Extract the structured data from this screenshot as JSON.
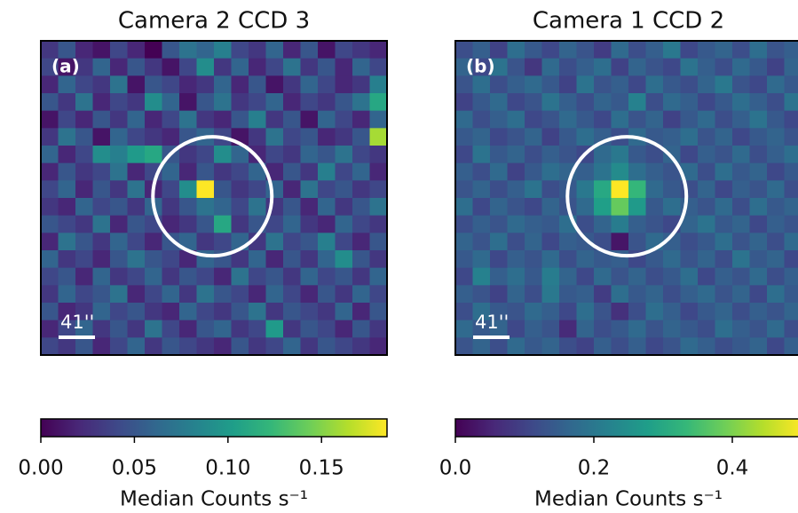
{
  "chart_data": [
    {
      "type": "heatmap",
      "title": "Camera 2 CCD 3",
      "label": "(a)",
      "scale_bar": "41''",
      "colormap": "viridis",
      "zlim": [
        0,
        0.185
      ],
      "colorbar_ticks": [
        {
          "value": 0,
          "label": "0.00"
        },
        0.05,
        {
          "value": 0.1,
          "label": "0.10"
        },
        0.15
      ],
      "colorbar_label": "Median Counts s⁻¹",
      "z": [
        [
          0.03,
          0.05,
          0.02,
          0.01,
          0.04,
          0.02,
          0.0,
          0.05,
          0.07,
          0.06,
          0.08,
          0.04,
          0.03,
          0.06,
          0.02,
          0.05,
          0.01,
          0.04,
          0.03,
          0.02
        ],
        [
          0.04,
          0.01,
          0.03,
          0.06,
          0.02,
          0.05,
          0.03,
          0.01,
          0.04,
          0.09,
          0.03,
          0.06,
          0.02,
          0.04,
          0.07,
          0.03,
          0.05,
          0.02,
          0.06,
          0.04
        ],
        [
          0.02,
          0.06,
          0.04,
          0.03,
          0.07,
          0.01,
          0.05,
          0.04,
          0.02,
          0.03,
          0.06,
          0.02,
          0.05,
          0.01,
          0.03,
          0.06,
          0.04,
          0.02,
          0.03,
          0.08
        ],
        [
          0.05,
          0.03,
          0.07,
          0.02,
          0.04,
          0.03,
          0.09,
          0.06,
          0.01,
          0.05,
          0.07,
          0.03,
          0.04,
          0.06,
          0.02,
          0.04,
          0.03,
          0.05,
          0.07,
          0.11
        ],
        [
          0.01,
          0.04,
          0.02,
          0.05,
          0.03,
          0.06,
          0.02,
          0.04,
          0.07,
          0.03,
          0.02,
          0.05,
          0.08,
          0.03,
          0.05,
          0.01,
          0.06,
          0.04,
          0.02,
          0.06
        ],
        [
          0.03,
          0.07,
          0.05,
          0.01,
          0.06,
          0.04,
          0.03,
          0.02,
          0.05,
          0.06,
          0.04,
          0.01,
          0.03,
          0.07,
          0.04,
          0.05,
          0.02,
          0.03,
          0.05,
          0.16
        ],
        [
          0.06,
          0.02,
          0.04,
          0.09,
          0.08,
          0.1,
          0.11,
          0.05,
          0.03,
          0.04,
          0.09,
          0.06,
          0.02,
          0.04,
          0.03,
          0.06,
          0.05,
          0.07,
          0.04,
          0.03
        ],
        [
          0.02,
          0.05,
          0.03,
          0.04,
          0.07,
          0.02,
          0.04,
          0.06,
          0.02,
          0.05,
          0.03,
          0.04,
          0.06,
          0.02,
          0.05,
          0.03,
          0.08,
          0.04,
          0.06,
          0.02
        ],
        [
          0.04,
          0.06,
          0.02,
          0.05,
          0.03,
          0.07,
          0.02,
          0.04,
          0.09,
          0.185,
          0.05,
          0.03,
          0.04,
          0.06,
          0.02,
          0.07,
          0.04,
          0.05,
          0.03,
          0.04
        ],
        [
          0.03,
          0.02,
          0.06,
          0.04,
          0.05,
          0.03,
          0.06,
          0.03,
          0.05,
          0.07,
          0.06,
          0.04,
          0.07,
          0.03,
          0.05,
          0.02,
          0.06,
          0.03,
          0.05,
          0.07
        ],
        [
          0.05,
          0.04,
          0.03,
          0.07,
          0.02,
          0.05,
          0.04,
          0.02,
          0.03,
          0.05,
          0.11,
          0.03,
          0.05,
          0.04,
          0.06,
          0.03,
          0.02,
          0.06,
          0.04,
          0.03
        ],
        [
          0.02,
          0.07,
          0.05,
          0.03,
          0.06,
          0.04,
          0.02,
          0.05,
          0.06,
          0.03,
          0.04,
          0.06,
          0.03,
          0.07,
          0.04,
          0.05,
          0.08,
          0.04,
          0.02,
          0.05
        ],
        [
          0.06,
          0.03,
          0.04,
          0.02,
          0.05,
          0.07,
          0.05,
          0.04,
          0.02,
          0.06,
          0.05,
          0.03,
          0.06,
          0.02,
          0.05,
          0.03,
          0.06,
          0.09,
          0.05,
          0.03
        ],
        [
          0.04,
          0.05,
          0.02,
          0.06,
          0.03,
          0.04,
          0.06,
          0.03,
          0.05,
          0.04,
          0.02,
          0.07,
          0.04,
          0.05,
          0.03,
          0.06,
          0.04,
          0.05,
          0.03,
          0.06
        ],
        [
          0.03,
          0.06,
          0.04,
          0.05,
          0.07,
          0.02,
          0.04,
          0.06,
          0.03,
          0.07,
          0.05,
          0.04,
          0.02,
          0.06,
          0.04,
          0.02,
          0.05,
          0.03,
          0.06,
          0.04
        ],
        [
          0.05,
          0.02,
          0.03,
          0.06,
          0.04,
          0.05,
          0.03,
          0.02,
          0.06,
          0.04,
          0.03,
          0.05,
          0.07,
          0.03,
          0.05,
          0.04,
          0.03,
          0.06,
          0.02,
          0.05
        ],
        [
          0.02,
          0.04,
          0.06,
          0.03,
          0.05,
          0.03,
          0.07,
          0.04,
          0.02,
          0.05,
          0.06,
          0.03,
          0.04,
          0.1,
          0.03,
          0.05,
          0.04,
          0.02,
          0.05,
          0.03
        ],
        [
          0.04,
          0.03,
          0.05,
          0.02,
          0.04,
          0.06,
          0.03,
          0.05,
          0.04,
          0.03,
          0.02,
          0.05,
          0.03,
          0.04,
          0.06,
          0.03,
          0.05,
          0.04,
          0.03,
          0.02
        ]
      ]
    },
    {
      "type": "heatmap",
      "title": "Camera 1 CCD 2",
      "label": "(b)",
      "scale_bar": "41''",
      "colormap": "viridis",
      "zlim": [
        0,
        0.5
      ],
      "colorbar_ticks": [
        {
          "value": 0,
          "label": "0.0"
        },
        0.2,
        0.4
      ],
      "colorbar_label": "Median Counts s⁻¹",
      "z": [
        [
          0.12,
          0.15,
          0.1,
          0.18,
          0.14,
          0.11,
          0.16,
          0.13,
          0.09,
          0.17,
          0.12,
          0.15,
          0.2,
          0.11,
          0.14,
          0.16,
          0.12,
          0.18,
          0.13,
          0.15
        ],
        [
          0.16,
          0.11,
          0.19,
          0.13,
          0.08,
          0.17,
          0.12,
          0.15,
          0.18,
          0.1,
          0.16,
          0.13,
          0.11,
          0.19,
          0.15,
          0.12,
          0.17,
          0.14,
          0.1,
          0.16
        ],
        [
          0.13,
          0.18,
          0.12,
          0.15,
          0.17,
          0.14,
          0.1,
          0.19,
          0.13,
          0.15,
          0.11,
          0.18,
          0.14,
          0.12,
          0.16,
          0.2,
          0.13,
          0.11,
          0.17,
          0.14
        ],
        [
          0.1,
          0.14,
          0.17,
          0.11,
          0.13,
          0.19,
          0.15,
          0.12,
          0.16,
          0.14,
          0.22,
          0.12,
          0.17,
          0.15,
          0.11,
          0.14,
          0.18,
          0.15,
          0.12,
          0.19
        ],
        [
          0.17,
          0.12,
          0.15,
          0.18,
          0.11,
          0.13,
          0.17,
          0.14,
          0.11,
          0.18,
          0.13,
          0.16,
          0.1,
          0.14,
          0.17,
          0.12,
          0.15,
          0.19,
          0.14,
          0.11
        ],
        [
          0.14,
          0.16,
          0.11,
          0.13,
          0.16,
          0.1,
          0.14,
          0.18,
          0.15,
          0.12,
          0.17,
          0.14,
          0.15,
          0.18,
          0.13,
          0.16,
          0.11,
          0.14,
          0.16,
          0.13
        ],
        [
          0.11,
          0.19,
          0.14,
          0.16,
          0.12,
          0.15,
          0.13,
          0.11,
          0.17,
          0.2,
          0.14,
          0.12,
          0.16,
          0.11,
          0.15,
          0.13,
          0.17,
          0.12,
          0.15,
          0.18
        ],
        [
          0.15,
          0.12,
          0.17,
          0.1,
          0.14,
          0.18,
          0.16,
          0.15,
          0.19,
          0.24,
          0.18,
          0.15,
          0.13,
          0.17,
          0.12,
          0.18,
          0.14,
          0.16,
          0.11,
          0.14
        ],
        [
          0.13,
          0.16,
          0.12,
          0.15,
          0.19,
          0.12,
          0.14,
          0.2,
          0.3,
          0.5,
          0.33,
          0.17,
          0.14,
          0.12,
          0.16,
          0.11,
          0.15,
          0.13,
          0.17,
          0.12
        ],
        [
          0.18,
          0.11,
          0.16,
          0.13,
          0.11,
          0.16,
          0.13,
          0.17,
          0.28,
          0.38,
          0.27,
          0.14,
          0.18,
          0.15,
          0.13,
          0.17,
          0.12,
          0.18,
          0.14,
          0.16
        ],
        [
          0.12,
          0.15,
          0.13,
          0.17,
          0.15,
          0.14,
          0.18,
          0.12,
          0.16,
          0.21,
          0.15,
          0.13,
          0.11,
          0.16,
          0.19,
          0.14,
          0.16,
          0.11,
          0.15,
          0.13
        ],
        [
          0.16,
          0.13,
          0.18,
          0.12,
          0.16,
          0.11,
          0.15,
          0.14,
          0.12,
          0.03,
          0.13,
          0.17,
          0.15,
          0.12,
          0.14,
          0.18,
          0.13,
          0.16,
          0.12,
          0.17
        ],
        [
          0.14,
          0.17,
          0.11,
          0.15,
          0.13,
          0.17,
          0.12,
          0.16,
          0.14,
          0.15,
          0.11,
          0.14,
          0.17,
          0.13,
          0.16,
          0.12,
          0.19,
          0.14,
          0.16,
          0.11
        ],
        [
          0.11,
          0.22,
          0.15,
          0.18,
          0.14,
          0.21,
          0.16,
          0.11,
          0.17,
          0.13,
          0.16,
          0.12,
          0.14,
          0.18,
          0.11,
          0.15,
          0.13,
          0.17,
          0.12,
          0.15
        ],
        [
          0.15,
          0.13,
          0.1,
          0.16,
          0.12,
          0.2,
          0.14,
          0.15,
          0.09,
          0.18,
          0.14,
          0.16,
          0.12,
          0.15,
          0.17,
          0.13,
          0.16,
          0.11,
          0.18,
          0.14
        ],
        [
          0.12,
          0.18,
          0.14,
          0.13,
          0.17,
          0.15,
          0.11,
          0.18,
          0.13,
          0.07,
          0.12,
          0.18,
          0.15,
          0.11,
          0.14,
          0.16,
          0.12,
          0.15,
          0.13,
          0.16
        ],
        [
          0.17,
          0.14,
          0.16,
          0.11,
          0.15,
          0.13,
          0.06,
          0.16,
          0.12,
          0.14,
          0.17,
          0.13,
          0.16,
          0.14,
          0.12,
          0.18,
          0.15,
          0.13,
          0.17,
          0.12
        ],
        [
          0.13,
          0.16,
          0.12,
          0.17,
          0.14,
          0.16,
          0.12,
          0.1,
          0.15,
          0.12,
          0.15,
          0.11,
          0.13,
          0.17,
          0.15,
          0.12,
          0.14,
          0.16,
          0.11,
          0.15
        ]
      ]
    }
  ]
}
